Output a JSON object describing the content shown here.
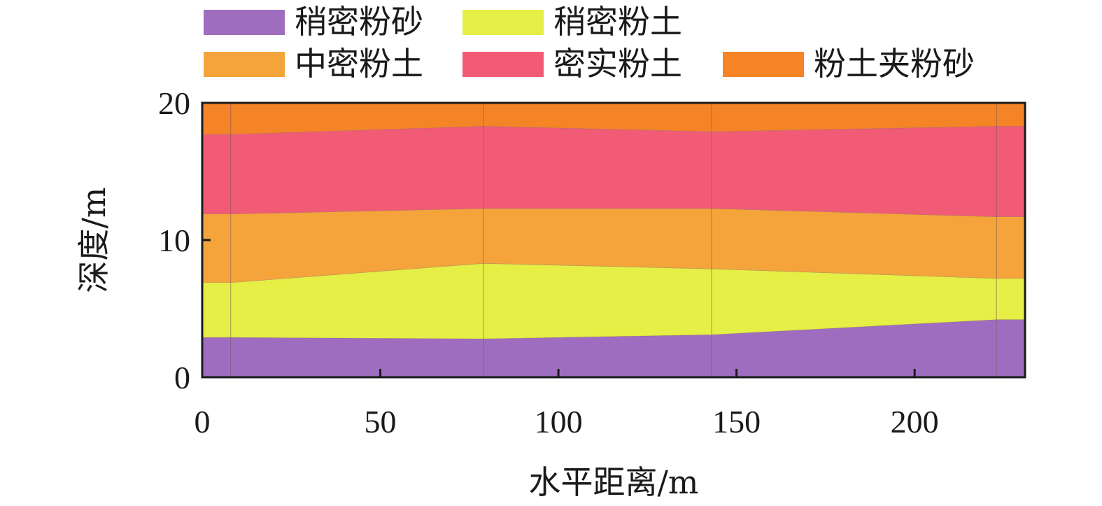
{
  "chart_data": {
    "type": "area",
    "xlabel": "水平距离/m",
    "ylabel": "深度/m",
    "xlim": [
      0,
      231
    ],
    "ylim": [
      0,
      20
    ],
    "xticks": [
      0,
      50,
      100,
      150,
      200
    ],
    "yticks": [
      0,
      10,
      20
    ],
    "grid": false,
    "legend_position": "top",
    "boreholes_x": [
      8,
      79,
      143,
      223
    ],
    "x": [
      0,
      8,
      79,
      143,
      223,
      231
    ],
    "layers": [
      {
        "name": "稍密粉砂",
        "color": "#9f6dbf",
        "bottom": [
          0,
          0,
          0,
          0,
          0,
          0
        ],
        "top": [
          2.9,
          2.9,
          2.8,
          3.1,
          4.2,
          4.2
        ]
      },
      {
        "name": "稍密粉土",
        "color": "#e5ef45",
        "bottom": [
          2.9,
          2.9,
          2.8,
          3.1,
          4.2,
          4.2
        ],
        "top": [
          6.9,
          6.9,
          8.3,
          7.9,
          7.2,
          7.2
        ]
      },
      {
        "name": "中密粉土",
        "color": "#f4a43a",
        "bottom": [
          6.9,
          6.9,
          8.3,
          7.9,
          7.2,
          7.2
        ],
        "top": [
          11.9,
          11.9,
          12.3,
          12.3,
          11.7,
          11.7
        ]
      },
      {
        "name": "密实粉土",
        "color": "#f25b75",
        "bottom": [
          11.9,
          11.9,
          12.3,
          12.3,
          11.7,
          11.7
        ],
        "top": [
          17.7,
          17.7,
          18.3,
          17.9,
          18.3,
          18.3
        ]
      },
      {
        "name": "粉土夹粉砂",
        "color": "#f58426",
        "bottom": [
          17.7,
          17.7,
          18.3,
          17.9,
          18.3,
          18.3
        ],
        "top": [
          20,
          20,
          20,
          20,
          20,
          20
        ]
      }
    ]
  }
}
